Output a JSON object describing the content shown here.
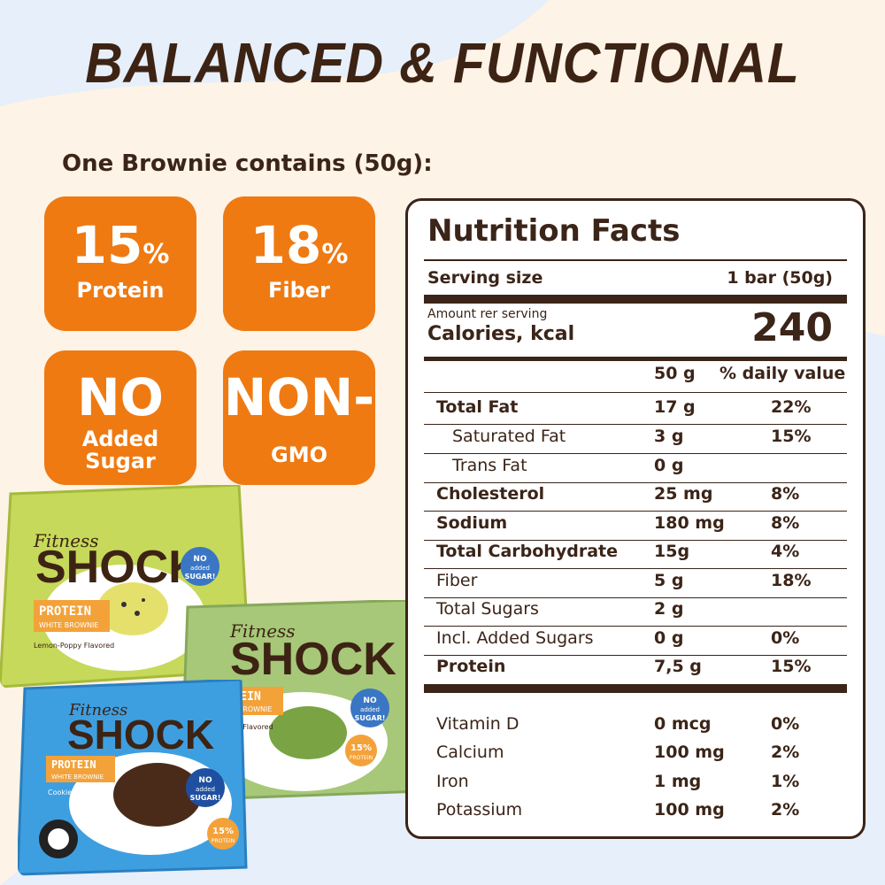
{
  "headline": "BALANCED & FUNCTIONAL",
  "subhead": "One Brownie contains (50g):",
  "badges": [
    {
      "big": "15",
      "pct": "%",
      "label": "Protein"
    },
    {
      "big": "18",
      "pct": "%",
      "label": "Fiber"
    },
    {
      "big": "NO",
      "label1": "Added",
      "label2": "Sugar"
    },
    {
      "big": "NON-",
      "label": "GMO"
    }
  ],
  "nutrition": {
    "title": "Nutrition Facts",
    "serving_label": "Serving size",
    "serving_value": "1 bar (50g)",
    "amount_label": "Amount rer serving",
    "calories_label": "Calories, kcal",
    "calories_value": "240",
    "col_amount": "50 g",
    "col_dv": "% daily value",
    "rows": [
      {
        "name": "Total Fat",
        "amount": "17 g",
        "dv": "22%"
      },
      {
        "name": "Saturated Fat",
        "amount": "3 g",
        "dv": "15%"
      },
      {
        "name": "Trans Fat",
        "amount": "0 g",
        "dv": ""
      },
      {
        "name": "Cholesterol",
        "amount": "25 mg",
        "dv": "8%"
      },
      {
        "name": "Sodium",
        "amount": "180 mg",
        "dv": "8%"
      },
      {
        "name": "Total Carbohydrate",
        "amount": "15g",
        "dv": "4%"
      },
      {
        "name": "Fiber",
        "amount": "5 g",
        "dv": "18%"
      },
      {
        "name": "Total Sugars",
        "amount": "2 g",
        "dv": ""
      },
      {
        "name": "Incl. Added Sugars",
        "amount": "0 g",
        "dv": "0%"
      },
      {
        "name": "Protein",
        "amount": "7,5 g",
        "dv": "15%"
      }
    ],
    "vitamins": [
      {
        "name": "Vitamin D",
        "amount": "0 mcg",
        "dv": "0%"
      },
      {
        "name": "Calcium",
        "amount": "100 mg",
        "dv": "2%"
      },
      {
        "name": "Iron",
        "amount": "1 mg",
        "dv": "1%"
      },
      {
        "name": "Potassium",
        "amount": "100 mg",
        "dv": "2%"
      }
    ]
  },
  "packs": [
    {
      "brand": "Fitness",
      "name": "SHOCK",
      "type": "PROTEIN",
      "sub": "WHITE BROWNIE",
      "flavor": "Lemon-Poppy Flavored",
      "badge1": "NO",
      "badge2": "added",
      "badge3": "SUGAR!"
    },
    {
      "brand": "Fitness",
      "name": "SHOCK",
      "type": "PROTEIN",
      "sub": "WHITE BROWNIE",
      "flavor": "Pistachio Flavored",
      "badge1": "NO",
      "badge2": "added",
      "badge3": "SUGAR!",
      "protein": "15%",
      "protein_label": "PROTEIN"
    },
    {
      "brand": "Fitness",
      "name": "SHOCK",
      "type": "PROTEIN",
      "sub": "WHITE BROWNIE",
      "flavor": "Cookie Cream",
      "badge1": "NO",
      "badge2": "added",
      "badge3": "SUGAR!",
      "protein": "15%",
      "protein_label": "PROTEIN"
    }
  ],
  "colors": {
    "orange": "#ef7a12",
    "brown": "#3b2418",
    "cream": "#fdf3e6",
    "blue_bg": "#e6effa"
  }
}
